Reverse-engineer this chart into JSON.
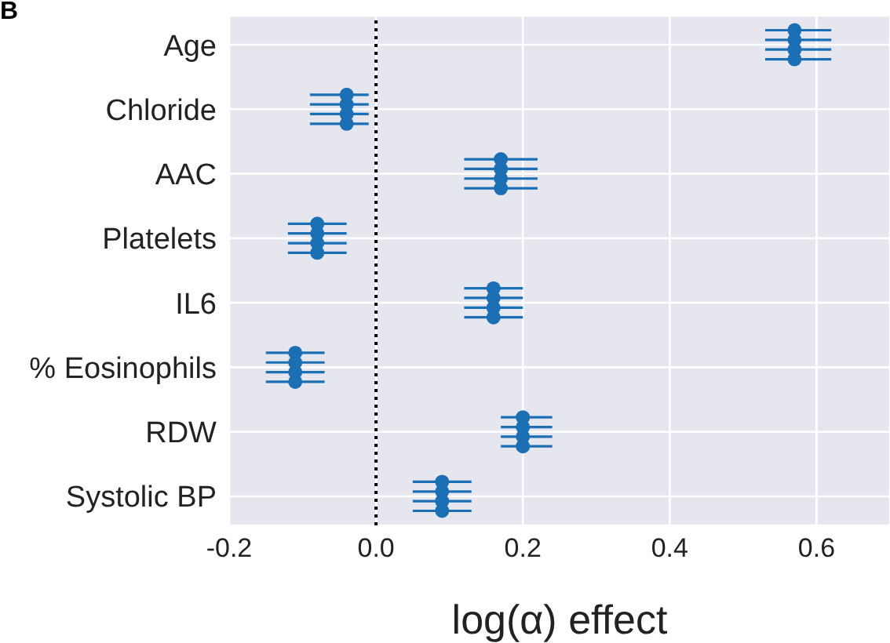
{
  "chart_data": {
    "type": "scatter",
    "orientation": "horizontal",
    "title": "B",
    "xlabel": "log(α) effect",
    "categories": [
      "Age",
      "Chloride",
      "AAC",
      "Platelets",
      "IL6",
      "% Eosinophils",
      "RDW",
      "Systolic BP"
    ],
    "series": [
      {
        "color": "#1a6fb5",
        "values": [
          0.57,
          -0.04,
          0.17,
          -0.08,
          0.16,
          -0.11,
          0.2,
          0.09
        ],
        "errors": [
          [
            0.53,
            0.62
          ],
          [
            -0.09,
            -0.01
          ],
          [
            0.12,
            0.22
          ],
          [
            -0.12,
            -0.04
          ],
          [
            0.12,
            0.2
          ],
          [
            -0.15,
            -0.07
          ],
          [
            0.17,
            0.24
          ],
          [
            0.05,
            0.13
          ]
        ]
      },
      {
        "color": "#1a6fb5",
        "values": [
          0.57,
          -0.04,
          0.17,
          -0.08,
          0.16,
          -0.11,
          0.2,
          0.09
        ],
        "errors": [
          [
            0.53,
            0.62
          ],
          [
            -0.09,
            -0.01
          ],
          [
            0.12,
            0.22
          ],
          [
            -0.12,
            -0.04
          ],
          [
            0.12,
            0.2
          ],
          [
            -0.15,
            -0.07
          ],
          [
            0.17,
            0.24
          ],
          [
            0.05,
            0.13
          ]
        ]
      },
      {
        "color": "#1a6fb5",
        "values": [
          0.57,
          -0.04,
          0.17,
          -0.08,
          0.16,
          -0.11,
          0.2,
          0.09
        ],
        "errors": [
          [
            0.53,
            0.62
          ],
          [
            -0.09,
            -0.01
          ],
          [
            0.12,
            0.22
          ],
          [
            -0.12,
            -0.04
          ],
          [
            0.12,
            0.2
          ],
          [
            -0.15,
            -0.07
          ],
          [
            0.17,
            0.24
          ],
          [
            0.05,
            0.13
          ]
        ]
      },
      {
        "color": "#1a6fb5",
        "values": [
          0.57,
          -0.04,
          0.17,
          -0.08,
          0.16,
          -0.11,
          0.2,
          0.09
        ],
        "errors": [
          [
            0.53,
            0.62
          ],
          [
            -0.09,
            -0.01
          ],
          [
            0.12,
            0.22
          ],
          [
            -0.12,
            -0.04
          ],
          [
            0.12,
            0.2
          ],
          [
            -0.15,
            -0.07
          ],
          [
            0.17,
            0.24
          ],
          [
            0.05,
            0.13
          ]
        ]
      }
    ],
    "xlim": [
      -0.2,
      0.7
    ],
    "xticks": [
      -0.2,
      {
        "value": 0,
        "label": "0.0"
      },
      0.2,
      0.4,
      0.6
    ],
    "ref_lines": [
      {
        "axis": "x",
        "value": 0,
        "color": "#000000",
        "line_style": "dotted"
      }
    ],
    "grid": true,
    "legend": false,
    "marker": "circle"
  }
}
